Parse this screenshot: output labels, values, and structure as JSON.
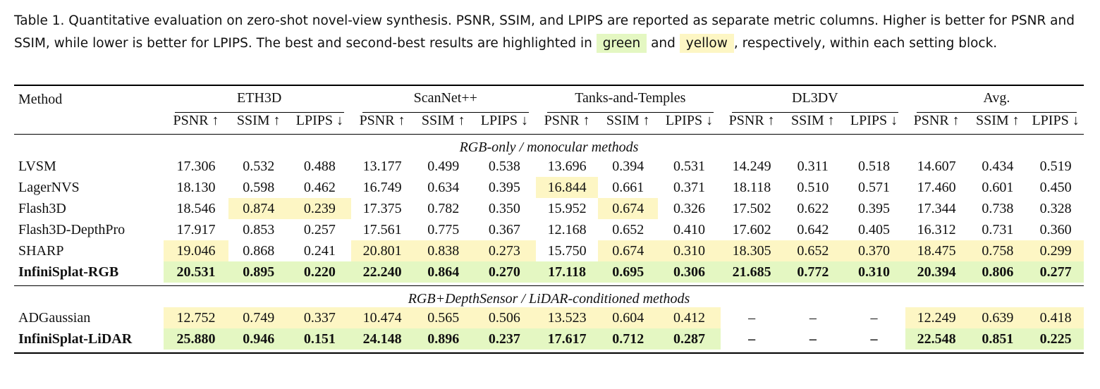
{
  "caption": {
    "part1": "Table 1.  Quantitative evaluation on zero-shot novel-view synthesis. PSNR, SSIM, and LPIPS are reported as separate metric columns. Higher is better for PSNR and SSIM, while lower is better for LPIPS. The best and second-best results are highlighted in",
    "green_word": "green",
    "and_word": "and",
    "yellow_word": "yellow",
    "part2": ", respectively, within each setting block."
  },
  "highlight_colors": {
    "best": "#e4f7c2",
    "second": "#fdf6c4"
  },
  "table": {
    "method_header": "Method",
    "datasets": [
      "ETH3D",
      "ScanNet++",
      "Tanks-and-Temples",
      "DL3DV",
      "Avg."
    ],
    "metrics": [
      "PSNR ↑",
      "SSIM ↑",
      "LPIPS ↓"
    ],
    "sections": [
      {
        "title": "RGB-only / monocular methods",
        "rows": [
          {
            "method": "LVSM",
            "bold": false,
            "values": [
              "17.306",
              "0.532",
              "0.488",
              "13.177",
              "0.499",
              "0.538",
              "13.696",
              "0.394",
              "0.531",
              "14.249",
              "0.311",
              "0.518",
              "14.607",
              "0.434",
              "0.519"
            ],
            "hl": [
              "",
              "",
              "",
              "",
              "",
              "",
              "",
              "",
              "",
              "",
              "",
              "",
              "",
              "",
              ""
            ]
          },
          {
            "method": "LagerNVS",
            "bold": false,
            "values": [
              "18.130",
              "0.598",
              "0.462",
              "16.749",
              "0.634",
              "0.395",
              "16.844",
              "0.661",
              "0.371",
              "18.118",
              "0.510",
              "0.571",
              "17.460",
              "0.601",
              "0.450"
            ],
            "hl": [
              "",
              "",
              "",
              "",
              "",
              "",
              "y",
              "",
              "",
              "",
              "",
              "",
              "",
              "",
              ""
            ]
          },
          {
            "method": "Flash3D",
            "bold": false,
            "values": [
              "18.546",
              "0.874",
              "0.239",
              "17.375",
              "0.782",
              "0.350",
              "15.952",
              "0.674",
              "0.326",
              "17.502",
              "0.622",
              "0.395",
              "17.344",
              "0.738",
              "0.328"
            ],
            "hl": [
              "",
              "y",
              "y",
              "",
              "",
              "",
              "",
              "y",
              "",
              "",
              "",
              "",
              "",
              "",
              ""
            ]
          },
          {
            "method": "Flash3D-DepthPro",
            "bold": false,
            "values": [
              "17.917",
              "0.853",
              "0.257",
              "17.561",
              "0.775",
              "0.367",
              "12.168",
              "0.652",
              "0.410",
              "17.602",
              "0.642",
              "0.405",
              "16.312",
              "0.731",
              "0.360"
            ],
            "hl": [
              "",
              "",
              "",
              "",
              "",
              "",
              "",
              "",
              "",
              "",
              "",
              "",
              "",
              "",
              ""
            ]
          },
          {
            "method": "SHARP",
            "bold": false,
            "values": [
              "19.046",
              "0.868",
              "0.241",
              "20.801",
              "0.838",
              "0.273",
              "15.750",
              "0.674",
              "0.310",
              "18.305",
              "0.652",
              "0.370",
              "18.475",
              "0.758",
              "0.299"
            ],
            "hl": [
              "y",
              "",
              "",
              "y",
              "y",
              "y",
              "",
              "y",
              "y",
              "y",
              "y",
              "y",
              "y",
              "y",
              "y"
            ]
          },
          {
            "method": "InfiniSplat-RGB",
            "bold": true,
            "values": [
              "20.531",
              "0.895",
              "0.220",
              "22.240",
              "0.864",
              "0.270",
              "17.118",
              "0.695",
              "0.306",
              "21.685",
              "0.772",
              "0.310",
              "20.394",
              "0.806",
              "0.277"
            ],
            "hl": [
              "g",
              "g",
              "g",
              "g",
              "g",
              "g",
              "g",
              "g",
              "g",
              "g",
              "g",
              "g",
              "g",
              "g",
              "g"
            ]
          }
        ]
      },
      {
        "title": "RGB+DepthSensor / LiDAR-conditioned methods",
        "rows": [
          {
            "method": "ADGaussian",
            "bold": false,
            "values": [
              "12.752",
              "0.749",
              "0.337",
              "10.474",
              "0.565",
              "0.506",
              "13.523",
              "0.604",
              "0.412",
              "–",
              "–",
              "–",
              "12.249",
              "0.639",
              "0.418"
            ],
            "hl": [
              "y",
              "y",
              "y",
              "y",
              "y",
              "y",
              "y",
              "y",
              "y",
              "",
              "",
              "",
              "y",
              "y",
              "y"
            ]
          },
          {
            "method": "InfiniSplat-LiDAR",
            "bold": true,
            "values": [
              "25.880",
              "0.946",
              "0.151",
              "24.148",
              "0.896",
              "0.237",
              "17.617",
              "0.712",
              "0.287",
              "–",
              "–",
              "–",
              "22.548",
              "0.851",
              "0.225"
            ],
            "hl": [
              "g",
              "g",
              "g",
              "g",
              "g",
              "g",
              "g",
              "g",
              "g",
              "",
              "",
              "",
              "g",
              "g",
              "g"
            ]
          }
        ]
      }
    ]
  }
}
